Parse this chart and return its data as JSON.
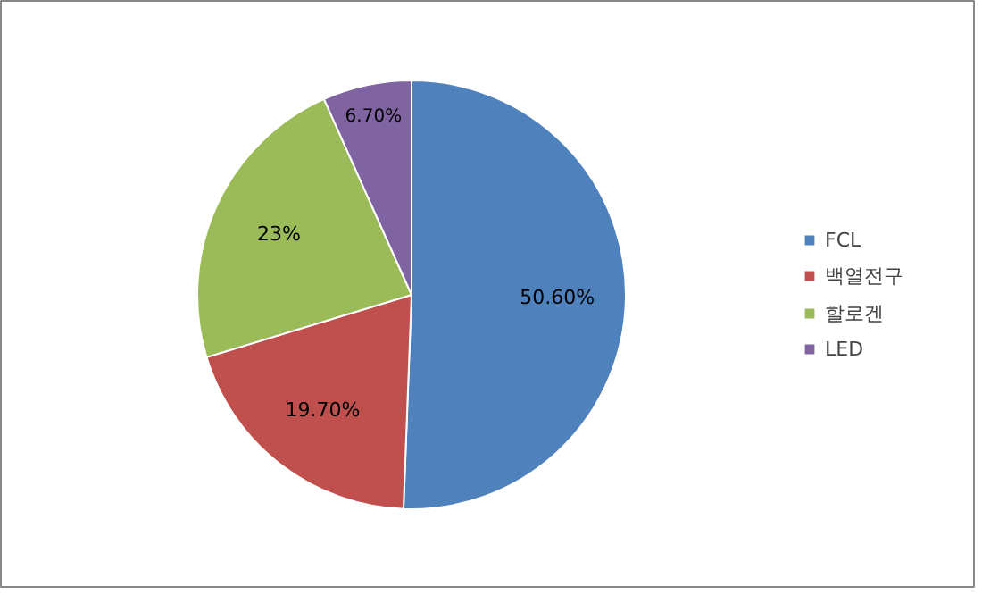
{
  "chart_data": {
    "type": "pie",
    "categories": [
      "FCL",
      "백열전구",
      "할로겐",
      "LED"
    ],
    "values": [
      50.6,
      19.7,
      23,
      6.7
    ],
    "value_labels": [
      "50.60%",
      "19.70%",
      "23%",
      "6.70%"
    ],
    "colors": [
      "#4f81bd",
      "#c0504d",
      "#9bbb59",
      "#8064a2"
    ],
    "legend": "right"
  }
}
